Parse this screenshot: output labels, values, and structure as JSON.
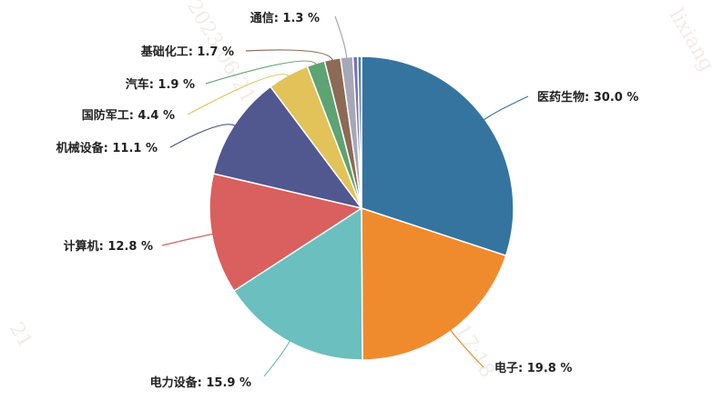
{
  "chart_data": {
    "type": "pie",
    "unit": "%",
    "slices": [
      {
        "label": "医药生物",
        "value": 30.0,
        "color": "#3674a0"
      },
      {
        "label": "电子",
        "value": 19.8,
        "color": "#f08b2d"
      },
      {
        "label": "电力设备",
        "value": 15.9,
        "color": "#6bbfbf"
      },
      {
        "label": "计算机",
        "value": 12.8,
        "color": "#d9605e"
      },
      {
        "label": "机械设备",
        "value": 11.1,
        "color": "#51578f"
      },
      {
        "label": "国防军工",
        "value": 4.4,
        "color": "#e2c35a"
      },
      {
        "label": "汽车",
        "value": 1.9,
        "color": "#5ea372"
      },
      {
        "label": "基础化工",
        "value": 1.7,
        "color": "#8c6a55"
      },
      {
        "label": "通信",
        "value": 1.3,
        "color": "#a6a8b8"
      },
      {
        "label": "",
        "value": 0.5,
        "color": "#7d72b3"
      },
      {
        "label": "",
        "value": 0.4,
        "color": "#4a7fb3"
      }
    ]
  },
  "watermark": {
    "texts": [
      "lixiang",
      "lixiang, 17:18",
      "2023-06-21",
      "21"
    ]
  }
}
